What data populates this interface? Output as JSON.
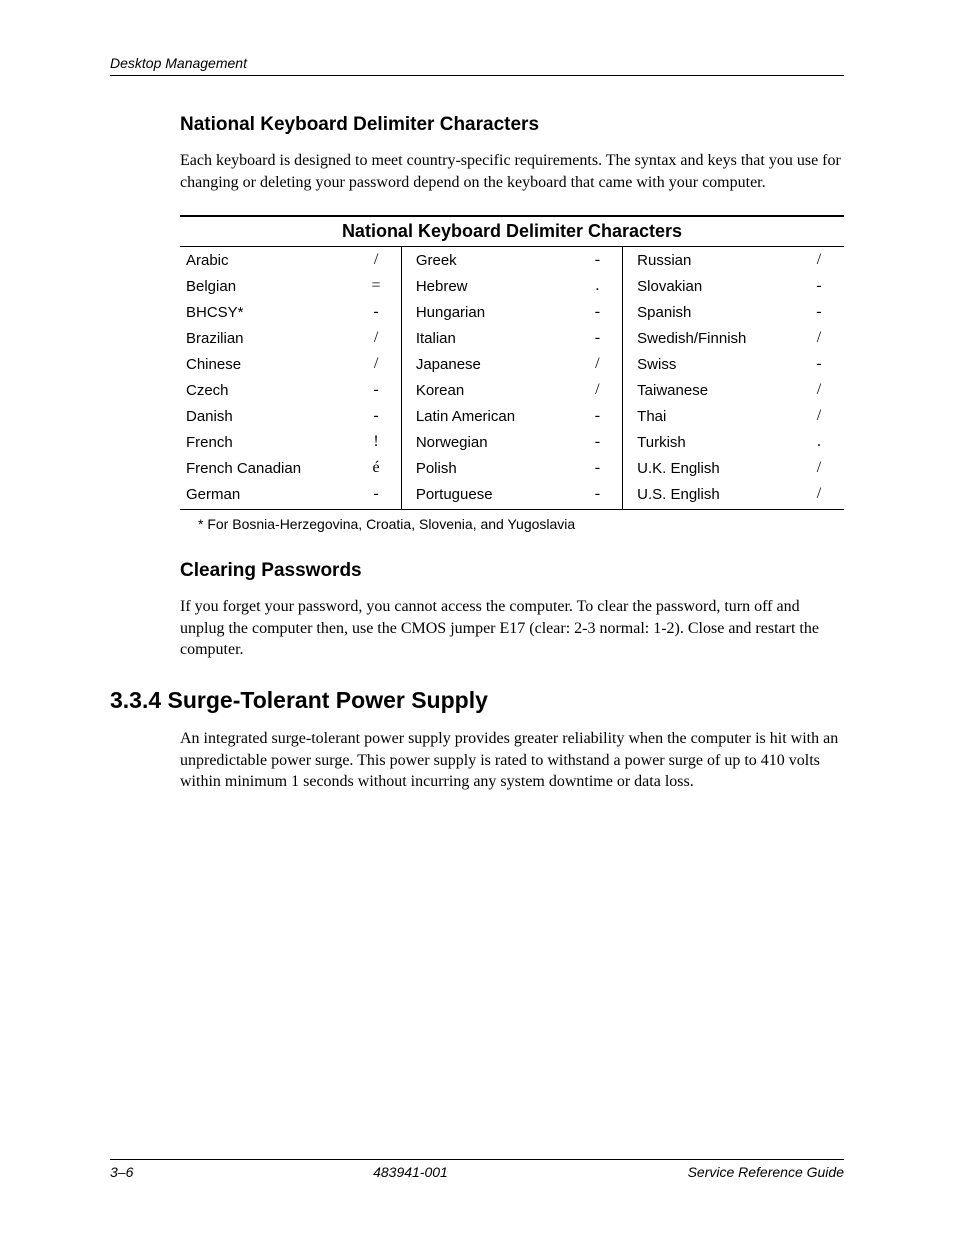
{
  "header": {
    "running": "Desktop Management"
  },
  "section1": {
    "title": "National Keyboard Delimiter Characters",
    "para": "Each keyboard is designed to meet country-specific requirements. The syntax and keys that you use for changing or deleting your password depend on the keyboard that came with your computer."
  },
  "table": {
    "title": "National Keyboard Delimiter Characters",
    "rows": [
      {
        "c1": "Arabic",
        "d1": "/",
        "c2": "Greek",
        "d2": "-",
        "c3": "Russian",
        "d3": "/"
      },
      {
        "c1": "Belgian",
        "d1": "=",
        "c2": "Hebrew",
        "d2": ".",
        "c3": "Slovakian",
        "d3": "-"
      },
      {
        "c1": "BHCSY*",
        "d1": "-",
        "c2": "Hungarian",
        "d2": "-",
        "c3": "Spanish",
        "d3": "-"
      },
      {
        "c1": "Brazilian",
        "d1": "/",
        "c2": "Italian",
        "d2": "-",
        "c3": "Swedish/Finnish",
        "d3": "/"
      },
      {
        "c1": "Chinese",
        "d1": "/",
        "c2": "Japanese",
        "d2": "/",
        "c3": "Swiss",
        "d3": "-"
      },
      {
        "c1": "Czech",
        "d1": "-",
        "c2": "Korean",
        "d2": "/",
        "c3": "Taiwanese",
        "d3": "/"
      },
      {
        "c1": "Danish",
        "d1": "-",
        "c2": "Latin American",
        "d2": "-",
        "c3": "Thai",
        "d3": "/"
      },
      {
        "c1": "French",
        "d1": "!",
        "c2": "Norwegian",
        "d2": "-",
        "c3": "Turkish",
        "d3": "."
      },
      {
        "c1": "French Canadian",
        "d1": "é",
        "c2": "Polish",
        "d2": "-",
        "c3": "U.K. English",
        "d3": "/"
      },
      {
        "c1": "German",
        "d1": "-",
        "c2": "Portuguese",
        "d2": "-",
        "c3": "U.S. English",
        "d3": "/"
      }
    ],
    "footnote": "* For Bosnia-Herzegovina, Croatia, Slovenia, and Yugoslavia"
  },
  "section2": {
    "title": "Clearing Passwords",
    "para": "If you forget your password, you cannot access the computer. To clear the password, turn off and unplug the computer then, use the CMOS jumper E17 (clear: 2-3 normal: 1-2). Close and restart the computer."
  },
  "section3": {
    "number": "3.3.4",
    "title": "Surge-Tolerant Power Supply",
    "para": "An integrated surge-tolerant power supply provides greater reliability when the computer is hit with an unpredictable power surge. This power supply is rated to withstand a power surge of up to 410 volts within minimum 1 seconds without incurring any system downtime or data loss."
  },
  "footer": {
    "page": "3–6",
    "docnum": "483941-001",
    "right": "Service Reference Guide"
  }
}
